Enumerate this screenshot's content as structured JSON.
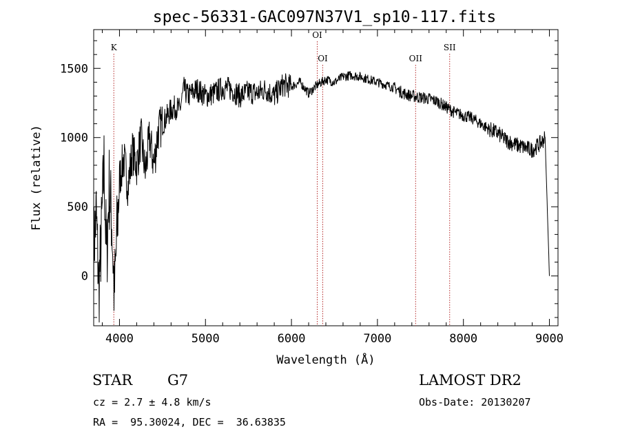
{
  "chart_data": {
    "type": "line",
    "title": "spec-56331-GAC097N37V1_sp10-117.fits",
    "xlabel": "Wavelength (Å)",
    "ylabel": "Flux (relative)",
    "xlim": [
      3700,
      9100
    ],
    "ylim": [
      -360,
      1780
    ],
    "x_ticks": [
      4000,
      5000,
      6000,
      7000,
      8000,
      9000
    ],
    "y_ticks": [
      0,
      500,
      1000,
      1500
    ],
    "grid": false,
    "series": [
      {
        "x": [
          3700,
          3730,
          3760,
          3790,
          3820,
          3850,
          3880,
          3910,
          3940,
          3970,
          4000,
          4050,
          4100,
          4150,
          4200,
          4250,
          4300,
          4350,
          4400,
          4450,
          4500,
          4550,
          4600,
          4650,
          4700,
          4750,
          4800,
          4900,
          5000,
          5100,
          5200,
          5300,
          5400,
          5500,
          5600,
          5700,
          5800,
          5900,
          6000,
          6100,
          6200,
          6300,
          6400,
          6500,
          6600,
          6700,
          6800,
          6900,
          7000,
          7100,
          7200,
          7300,
          7400,
          7500,
          7600,
          7700,
          7800,
          7900,
          8000,
          8100,
          8200,
          8300,
          8400,
          8500,
          8600,
          8700,
          8800,
          8900,
          8950,
          9000
        ],
        "y": [
          200,
          450,
          -100,
          300,
          800,
          100,
          650,
          400,
          -150,
          300,
          700,
          850,
          650,
          900,
          800,
          1000,
          750,
          1000,
          800,
          1050,
          1100,
          1150,
          1200,
          1220,
          1200,
          1350,
          1300,
          1350,
          1300,
          1320,
          1360,
          1350,
          1300,
          1330,
          1320,
          1350,
          1300,
          1380,
          1370,
          1400,
          1320,
          1380,
          1420,
          1400,
          1440,
          1450,
          1440,
          1420,
          1400,
          1380,
          1360,
          1320,
          1300,
          1290,
          1280,
          1260,
          1220,
          1180,
          1160,
          1140,
          1100,
          1060,
          1030,
          980,
          950,
          930,
          910,
          960,
          1000,
          0
        ]
      }
    ],
    "annotations": [
      {
        "label": "K",
        "x": 3934,
        "label_y": 1630
      },
      {
        "label": "OI",
        "x": 6300,
        "label_y": 1720
      },
      {
        "label": "OI",
        "x": 6364,
        "label_y": 1550
      },
      {
        "label": "OII",
        "x": 7444,
        "label_y": 1550
      },
      {
        "label": "SII",
        "x": 7840,
        "label_y": 1630
      }
    ]
  },
  "info": {
    "class": "STAR",
    "subclass": "G7",
    "cz": "cz = 2.7 ± 4.8 km/s",
    "radec": "RA =  95.30024, DEC =  36.63835",
    "survey": "LAMOST DR2",
    "obsdate": "Obs-Date: 20130207"
  },
  "colors": {
    "line_marker": "#b22222",
    "spectrum": "#000000"
  }
}
